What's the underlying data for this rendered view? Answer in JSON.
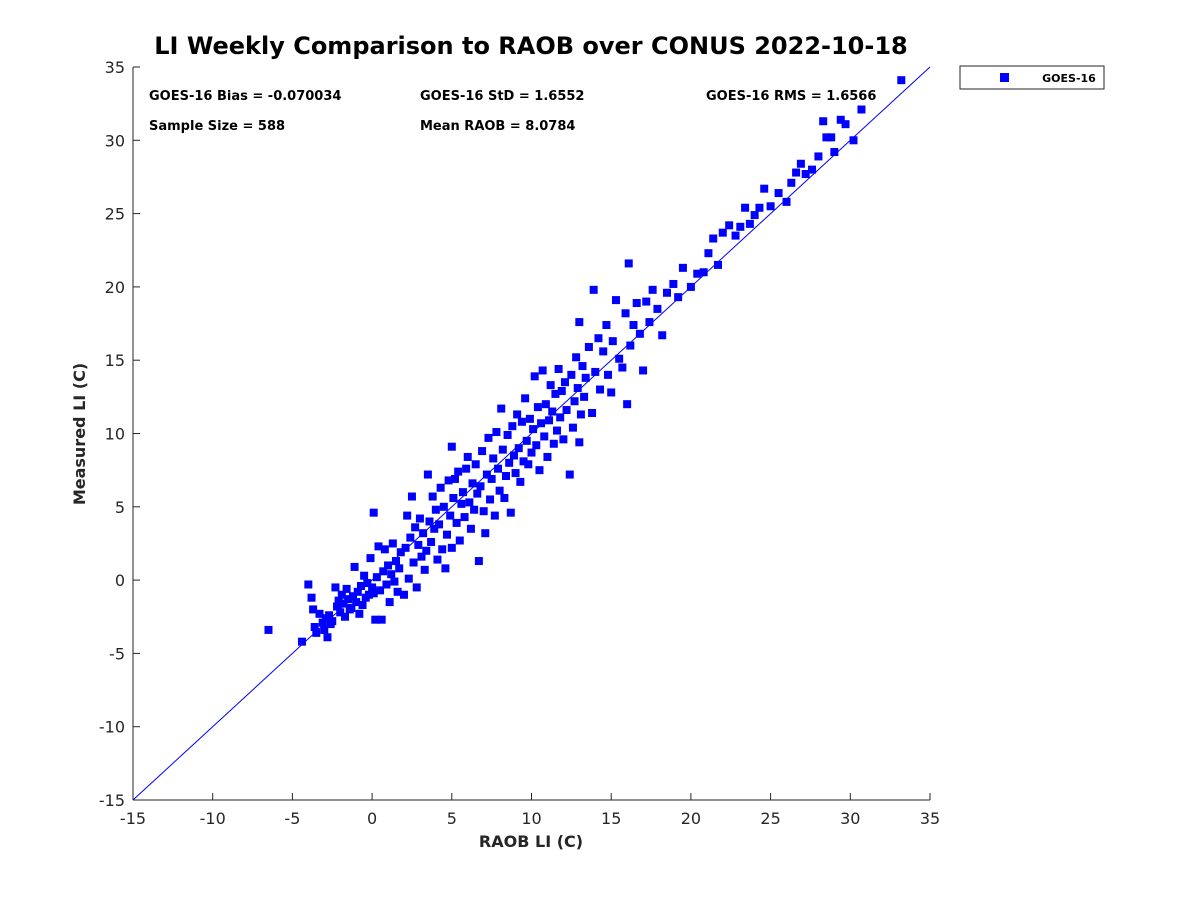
{
  "chart_data": {
    "type": "scatter",
    "title": "LI Weekly Comparison to RAOB over CONUS 2022-10-18",
    "xlabel": "RAOB LI (C)",
    "ylabel": "Measured LI (C)",
    "xlim": [
      -15,
      35
    ],
    "ylim": [
      -15,
      35
    ],
    "xticks": [
      -15,
      -10,
      -5,
      0,
      5,
      10,
      15,
      20,
      25,
      30,
      35
    ],
    "yticks": [
      -15,
      -10,
      -5,
      0,
      5,
      10,
      15,
      20,
      25,
      30,
      35
    ],
    "grid": false,
    "legend_position": "outside-top-right",
    "reference_line": {
      "type": "one-to-one",
      "from": [
        -15,
        -15
      ],
      "to": [
        35,
        35
      ],
      "color": "#0000ff"
    },
    "stats": {
      "bias": "GOES-16 Bias = -0.070034",
      "std": "GOES-16 StD = 1.6552",
      "rms": "GOES-16 RMS = 1.6566",
      "sample_size": "Sample Size = 588",
      "mean_raob": "Mean RAOB = 8.0784"
    },
    "series": [
      {
        "name": "GOES-16",
        "color": "#0000ff",
        "marker": "square",
        "points": [
          [
            -6.5,
            -3.4
          ],
          [
            -4.4,
            -4.2
          ],
          [
            -4.0,
            -0.3
          ],
          [
            -3.8,
            -1.2
          ],
          [
            -3.7,
            -2.0
          ],
          [
            -3.6,
            -3.2
          ],
          [
            -3.5,
            -3.6
          ],
          [
            -3.3,
            -2.3
          ],
          [
            -3.1,
            -2.9
          ],
          [
            -3.0,
            -3.4
          ],
          [
            -2.9,
            -2.6
          ],
          [
            -2.8,
            -3.9
          ],
          [
            -2.7,
            -2.4
          ],
          [
            -2.6,
            -3.0
          ],
          [
            -2.5,
            -2.8
          ],
          [
            -2.3,
            -0.5
          ],
          [
            -2.2,
            -1.8
          ],
          [
            -2.1,
            -1.4
          ],
          [
            -2.0,
            -2.2
          ],
          [
            -1.9,
            -1.0
          ],
          [
            -1.8,
            -1.6
          ],
          [
            -1.7,
            -2.5
          ],
          [
            -1.6,
            -0.6
          ],
          [
            -1.5,
            -1.3
          ],
          [
            -1.4,
            -2.0
          ],
          [
            -1.3,
            -1.9
          ],
          [
            -1.2,
            -1.1
          ],
          [
            -1.1,
            0.9
          ],
          [
            -1.0,
            -1.5
          ],
          [
            -0.9,
            -0.8
          ],
          [
            -0.8,
            -2.3
          ],
          [
            -0.7,
            -0.4
          ],
          [
            -0.6,
            -1.7
          ],
          [
            -0.5,
            0.3
          ],
          [
            -0.4,
            -1.2
          ],
          [
            -0.3,
            -0.2
          ],
          [
            -0.2,
            -1.0
          ],
          [
            -0.1,
            1.5
          ],
          [
            0.0,
            -0.5
          ],
          [
            0.1,
            4.6
          ],
          [
            0.1,
            -0.9
          ],
          [
            0.2,
            -2.7
          ],
          [
            0.3,
            0.2
          ],
          [
            0.4,
            2.3
          ],
          [
            0.5,
            -0.7
          ],
          [
            0.6,
            -2.7
          ],
          [
            0.7,
            0.6
          ],
          [
            0.8,
            2.1
          ],
          [
            0.9,
            -0.3
          ],
          [
            1.0,
            1.0
          ],
          [
            1.1,
            -1.5
          ],
          [
            1.2,
            0.4
          ],
          [
            1.3,
            2.5
          ],
          [
            1.4,
            -0.1
          ],
          [
            1.5,
            1.3
          ],
          [
            1.6,
            -0.8
          ],
          [
            1.7,
            0.8
          ],
          [
            1.8,
            1.9
          ],
          [
            2.0,
            -1.0
          ],
          [
            2.1,
            2.2
          ],
          [
            2.2,
            4.4
          ],
          [
            2.3,
            0.1
          ],
          [
            2.4,
            2.9
          ],
          [
            2.5,
            5.7
          ],
          [
            2.6,
            1.2
          ],
          [
            2.7,
            3.6
          ],
          [
            2.8,
            -0.5
          ],
          [
            2.9,
            2.4
          ],
          [
            3.0,
            4.2
          ],
          [
            3.1,
            1.6
          ],
          [
            3.2,
            3.2
          ],
          [
            3.3,
            0.7
          ],
          [
            3.4,
            2.0
          ],
          [
            3.5,
            7.2
          ],
          [
            3.6,
            4.0
          ],
          [
            3.7,
            2.6
          ],
          [
            3.8,
            5.7
          ],
          [
            3.9,
            3.5
          ],
          [
            4.0,
            4.8
          ],
          [
            4.1,
            1.4
          ],
          [
            4.2,
            3.8
          ],
          [
            4.3,
            6.3
          ],
          [
            4.4,
            2.1
          ],
          [
            4.5,
            5.0
          ],
          [
            4.6,
            0.8
          ],
          [
            4.7,
            3.1
          ],
          [
            4.8,
            6.8
          ],
          [
            4.9,
            4.4
          ],
          [
            5.0,
            2.2
          ],
          [
            5.0,
            9.1
          ],
          [
            5.1,
            5.6
          ],
          [
            5.2,
            6.9
          ],
          [
            5.3,
            3.9
          ],
          [
            5.4,
            7.4
          ],
          [
            5.5,
            2.7
          ],
          [
            5.6,
            5.2
          ],
          [
            5.7,
            6.0
          ],
          [
            5.8,
            4.3
          ],
          [
            5.9,
            7.6
          ],
          [
            6.0,
            8.4
          ],
          [
            6.1,
            5.3
          ],
          [
            6.2,
            3.5
          ],
          [
            6.3,
            6.6
          ],
          [
            6.4,
            4.8
          ],
          [
            6.5,
            7.9
          ],
          [
            6.6,
            5.9
          ],
          [
            6.7,
            1.3
          ],
          [
            6.8,
            6.4
          ],
          [
            6.9,
            8.8
          ],
          [
            7.0,
            4.7
          ],
          [
            7.1,
            3.2
          ],
          [
            7.2,
            7.2
          ],
          [
            7.3,
            9.7
          ],
          [
            7.4,
            5.5
          ],
          [
            7.5,
            6.9
          ],
          [
            7.6,
            8.3
          ],
          [
            7.7,
            4.4
          ],
          [
            7.8,
            10.1
          ],
          [
            7.9,
            7.6
          ],
          [
            8.0,
            6.1
          ],
          [
            8.1,
            11.7
          ],
          [
            8.2,
            8.9
          ],
          [
            8.3,
            5.6
          ],
          [
            8.4,
            7.1
          ],
          [
            8.5,
            9.9
          ],
          [
            8.6,
            8.0
          ],
          [
            8.7,
            4.6
          ],
          [
            8.8,
            10.5
          ],
          [
            8.9,
            8.5
          ],
          [
            9.0,
            7.3
          ],
          [
            9.1,
            11.3
          ],
          [
            9.2,
            9.0
          ],
          [
            9.3,
            6.7
          ],
          [
            9.4,
            10.8
          ],
          [
            9.5,
            8.1
          ],
          [
            9.6,
            12.4
          ],
          [
            9.7,
            9.5
          ],
          [
            9.8,
            7.9
          ],
          [
            9.9,
            11.0
          ],
          [
            10.0,
            8.7
          ],
          [
            10.1,
            10.3
          ],
          [
            10.2,
            13.9
          ],
          [
            10.3,
            9.2
          ],
          [
            10.4,
            11.8
          ],
          [
            10.5,
            7.5
          ],
          [
            10.6,
            10.7
          ],
          [
            10.7,
            14.3
          ],
          [
            10.8,
            9.8
          ],
          [
            10.9,
            12.0
          ],
          [
            11.0,
            8.4
          ],
          [
            11.1,
            10.9
          ],
          [
            11.2,
            13.3
          ],
          [
            11.3,
            11.5
          ],
          [
            11.4,
            9.3
          ],
          [
            11.5,
            12.7
          ],
          [
            11.6,
            10.2
          ],
          [
            11.7,
            14.4
          ],
          [
            11.8,
            11.1
          ],
          [
            11.9,
            12.9
          ],
          [
            12.0,
            9.6
          ],
          [
            12.1,
            13.5
          ],
          [
            12.2,
            11.6
          ],
          [
            12.4,
            7.2
          ],
          [
            12.5,
            14.0
          ],
          [
            12.6,
            10.4
          ],
          [
            12.7,
            12.2
          ],
          [
            12.8,
            15.2
          ],
          [
            12.9,
            13.1
          ],
          [
            13.0,
            9.4
          ],
          [
            13.0,
            17.6
          ],
          [
            13.1,
            11.3
          ],
          [
            13.2,
            14.6
          ],
          [
            13.3,
            12.5
          ],
          [
            13.4,
            13.8
          ],
          [
            13.6,
            15.9
          ],
          [
            13.8,
            11.4
          ],
          [
            13.9,
            19.8
          ],
          [
            14.0,
            14.2
          ],
          [
            14.2,
            16.5
          ],
          [
            14.3,
            13.0
          ],
          [
            14.5,
            15.6
          ],
          [
            14.7,
            17.4
          ],
          [
            14.8,
            14.0
          ],
          [
            15.0,
            12.8
          ],
          [
            15.1,
            16.3
          ],
          [
            15.3,
            19.1
          ],
          [
            15.5,
            15.1
          ],
          [
            15.7,
            14.5
          ],
          [
            15.9,
            18.2
          ],
          [
            16.0,
            12.0
          ],
          [
            16.1,
            21.6
          ],
          [
            16.2,
            16.0
          ],
          [
            16.4,
            17.4
          ],
          [
            16.6,
            18.9
          ],
          [
            16.8,
            16.8
          ],
          [
            17.0,
            14.3
          ],
          [
            17.2,
            19.0
          ],
          [
            17.4,
            17.6
          ],
          [
            17.6,
            19.8
          ],
          [
            17.9,
            18.5
          ],
          [
            18.2,
            16.7
          ],
          [
            18.5,
            19.6
          ],
          [
            18.9,
            20.2
          ],
          [
            19.2,
            19.3
          ],
          [
            19.5,
            21.3
          ],
          [
            20.0,
            20.0
          ],
          [
            20.4,
            20.9
          ],
          [
            20.8,
            21.0
          ],
          [
            21.1,
            22.3
          ],
          [
            21.4,
            23.3
          ],
          [
            21.7,
            21.5
          ],
          [
            22.0,
            23.7
          ],
          [
            22.4,
            24.2
          ],
          [
            22.8,
            23.5
          ],
          [
            23.1,
            24.1
          ],
          [
            23.4,
            25.4
          ],
          [
            23.7,
            24.3
          ],
          [
            24.0,
            24.9
          ],
          [
            24.3,
            25.4
          ],
          [
            24.6,
            26.7
          ],
          [
            25.0,
            25.5
          ],
          [
            25.5,
            26.4
          ],
          [
            26.0,
            25.8
          ],
          [
            26.3,
            27.1
          ],
          [
            26.6,
            27.8
          ],
          [
            26.9,
            28.4
          ],
          [
            27.2,
            27.7
          ],
          [
            27.6,
            28.0
          ],
          [
            28.0,
            28.9
          ],
          [
            28.3,
            31.3
          ],
          [
            28.5,
            30.2
          ],
          [
            28.8,
            30.2
          ],
          [
            29.0,
            29.2
          ],
          [
            29.4,
            31.4
          ],
          [
            29.7,
            31.1
          ],
          [
            30.2,
            30.0
          ],
          [
            30.7,
            32.1
          ],
          [
            33.2,
            34.1
          ]
        ]
      }
    ]
  }
}
